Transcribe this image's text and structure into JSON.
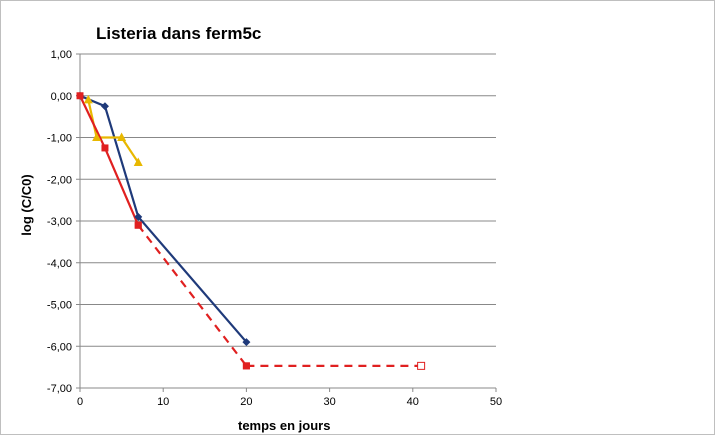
{
  "chart_data": {
    "type": "line",
    "title": "Listeria dans ferm5c",
    "xlabel": "temps en jours",
    "ylabel": "log (C/C0)",
    "xlim": [
      0,
      50
    ],
    "ylim": [
      -7,
      1
    ],
    "x_ticks": [
      "0",
      "10",
      "20",
      "30",
      "40",
      "50"
    ],
    "y_ticks": [
      "1,00",
      "0,00",
      "-1,00",
      "-2,00",
      "-3,00",
      "-4,00",
      "-5,00",
      "-6,00",
      "-7,00"
    ],
    "grid": "horizontal",
    "legend": "none",
    "series": [
      {
        "color": "#1f3a7a",
        "marker": "diamond",
        "line": "solid",
        "points": [
          [
            0,
            0
          ],
          [
            3,
            -0.25
          ],
          [
            7,
            -2.9
          ],
          [
            20,
            -5.9
          ]
        ]
      },
      {
        "color": "#e8b800",
        "marker": "triangle",
        "line": "solid",
        "points": [
          [
            1,
            -0.1
          ],
          [
            2,
            -1.0
          ],
          [
            5,
            -1.0
          ],
          [
            7,
            -1.6
          ]
        ]
      },
      {
        "color": "#e02020",
        "marker": "square",
        "line": "solid",
        "points": [
          [
            0,
            0
          ],
          [
            3,
            -1.25
          ],
          [
            7,
            -3.1
          ]
        ]
      },
      {
        "color": "#e02020",
        "marker": "square",
        "line": "dashed",
        "points": [
          [
            7,
            -3.1
          ],
          [
            20,
            -6.47
          ]
        ]
      },
      {
        "color": "#e02020",
        "marker": "square",
        "line": "dashed",
        "points": [
          [
            20,
            -6.47
          ],
          [
            41,
            -6.47
          ]
        ],
        "last_marker_open": true
      }
    ]
  }
}
